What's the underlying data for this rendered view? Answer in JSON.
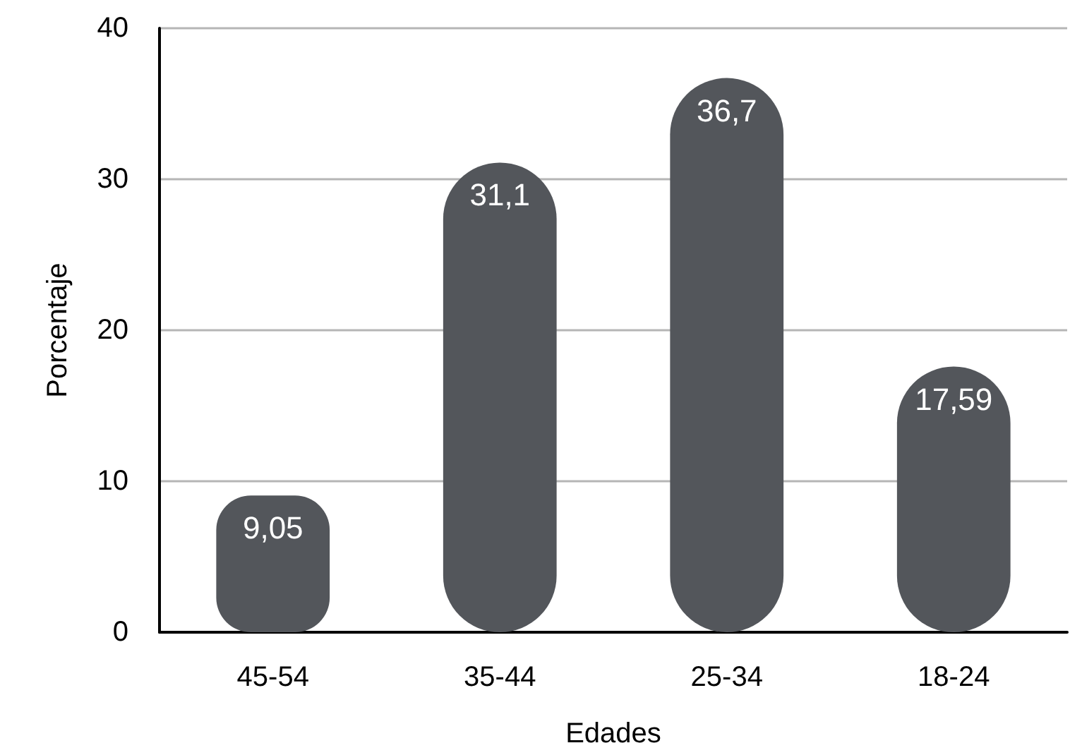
{
  "chart_data": {
    "type": "bar",
    "xlabel": "Edades",
    "ylabel": "Porcentaje",
    "categories": [
      "45-54",
      "35-44",
      "25-34",
      "18-24"
    ],
    "values": [
      9.05,
      31.1,
      36.7,
      17.59
    ],
    "value_labels": [
      "9,05",
      "31,1",
      "36,7",
      "17,59"
    ],
    "color": "#53565b",
    "ylim": [
      0,
      40
    ],
    "yticks": [
      0,
      10,
      20,
      30,
      40
    ],
    "grid": "y"
  }
}
